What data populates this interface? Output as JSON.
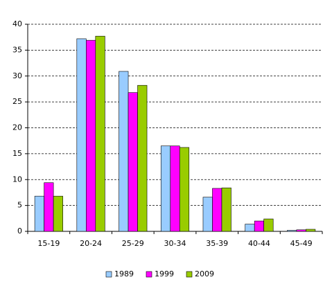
{
  "chart_data": {
    "type": "bar",
    "categories": [
      "15-19",
      "20-24",
      "25-29",
      "30-34",
      "35-39",
      "40-44",
      "45-49"
    ],
    "series": [
      {
        "name": "1989",
        "color": "#99ccff",
        "values": [
          6.8,
          37.2,
          30.9,
          16.5,
          6.6,
          1.4,
          0.2
        ]
      },
      {
        "name": "1999",
        "color": "#ff00ff",
        "values": [
          9.4,
          36.9,
          26.8,
          16.5,
          8.3,
          2.0,
          0.3
        ]
      },
      {
        "name": "2009",
        "color": "#99cc00",
        "values": [
          6.8,
          37.7,
          28.2,
          16.2,
          8.4,
          2.4,
          0.4
        ]
      }
    ],
    "ylim": [
      0,
      40
    ],
    "yticks": [
      0,
      5,
      10,
      15,
      20,
      25,
      30,
      35,
      40
    ],
    "grid": true,
    "legend": "bottom"
  }
}
